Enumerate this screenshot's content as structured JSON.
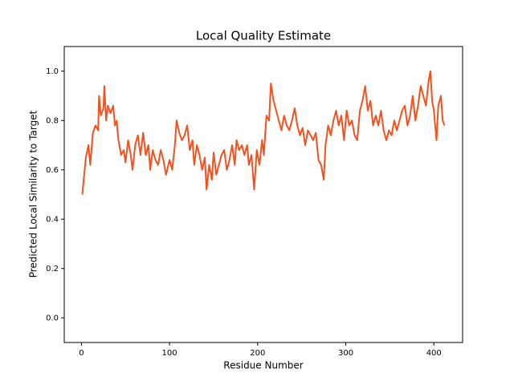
{
  "chart_data": {
    "type": "line",
    "title": "Local Quality Estimate",
    "x_label": "Residue Number",
    "y_label": "Predicted Local Similarity to Target",
    "xlim": [
      -19.5,
      432.6
    ],
    "ylim": [
      -0.1,
      1.1
    ],
    "xticks": [
      0,
      100,
      200,
      300,
      400
    ],
    "yticks": [
      {
        "value": 0,
        "label": "0.0"
      },
      0.2,
      0.4,
      0.6,
      0.8,
      {
        "value": 1,
        "label": "1.0"
      }
    ],
    "x": [
      1,
      5,
      8,
      10,
      13,
      16,
      19,
      20,
      22,
      25,
      26,
      28,
      30,
      33,
      36,
      38,
      40,
      42,
      45,
      48,
      50,
      53,
      56,
      58,
      61,
      64,
      67,
      70,
      73,
      76,
      78,
      81,
      84,
      87,
      90,
      93,
      96,
      100,
      103,
      106,
      108,
      111,
      114,
      117,
      120,
      123,
      126,
      128,
      131,
      134,
      137,
      140,
      142,
      145,
      148,
      150,
      153,
      156,
      159,
      162,
      165,
      168,
      171,
      174,
      176,
      179,
      182,
      185,
      188,
      190,
      193,
      196,
      199,
      202,
      205,
      207,
      210,
      213,
      215,
      218,
      221,
      224,
      227,
      230,
      233,
      236,
      239,
      242,
      245,
      248,
      251,
      254,
      257,
      260,
      263,
      266,
      269,
      272,
      275,
      277,
      280,
      283,
      286,
      289,
      292,
      295,
      298,
      301,
      304,
      307,
      310,
      313,
      316,
      319,
      322,
      325,
      328,
      331,
      334,
      337,
      340,
      343,
      346,
      349,
      352,
      355,
      358,
      361,
      364,
      367,
      370,
      373,
      376,
      379,
      382,
      385,
      388,
      391,
      394,
      396,
      398,
      400,
      403,
      405,
      408,
      410,
      412
    ],
    "series": [
      {
        "color": "#f4511e",
        "values": [
          0.5,
          0.65,
          0.7,
          0.62,
          0.75,
          0.78,
          0.76,
          0.9,
          0.82,
          0.85,
          0.94,
          0.8,
          0.86,
          0.83,
          0.86,
          0.78,
          0.8,
          0.72,
          0.66,
          0.68,
          0.63,
          0.72,
          0.66,
          0.6,
          0.7,
          0.74,
          0.66,
          0.75,
          0.66,
          0.7,
          0.6,
          0.68,
          0.64,
          0.62,
          0.68,
          0.64,
          0.58,
          0.64,
          0.6,
          0.7,
          0.8,
          0.75,
          0.72,
          0.74,
          0.78,
          0.68,
          0.72,
          0.62,
          0.7,
          0.66,
          0.6,
          0.65,
          0.52,
          0.62,
          0.56,
          0.67,
          0.58,
          0.62,
          0.66,
          0.68,
          0.6,
          0.64,
          0.7,
          0.62,
          0.72,
          0.68,
          0.7,
          0.66,
          0.7,
          0.62,
          0.66,
          0.52,
          0.68,
          0.62,
          0.72,
          0.66,
          0.82,
          0.8,
          0.95,
          0.88,
          0.84,
          0.8,
          0.76,
          0.82,
          0.78,
          0.76,
          0.8,
          0.85,
          0.78,
          0.74,
          0.77,
          0.7,
          0.76,
          0.74,
          0.72,
          0.75,
          0.64,
          0.62,
          0.56,
          0.7,
          0.78,
          0.74,
          0.8,
          0.84,
          0.78,
          0.82,
          0.72,
          0.84,
          0.78,
          0.8,
          0.74,
          0.72,
          0.84,
          0.88,
          0.94,
          0.84,
          0.88,
          0.78,
          0.82,
          0.78,
          0.84,
          0.76,
          0.72,
          0.76,
          0.74,
          0.8,
          0.76,
          0.8,
          0.84,
          0.86,
          0.78,
          0.82,
          0.9,
          0.8,
          0.86,
          0.94,
          0.9,
          0.86,
          0.96,
          1.0,
          0.88,
          0.84,
          0.72,
          0.86,
          0.9,
          0.8,
          0.78
        ]
      }
    ]
  }
}
